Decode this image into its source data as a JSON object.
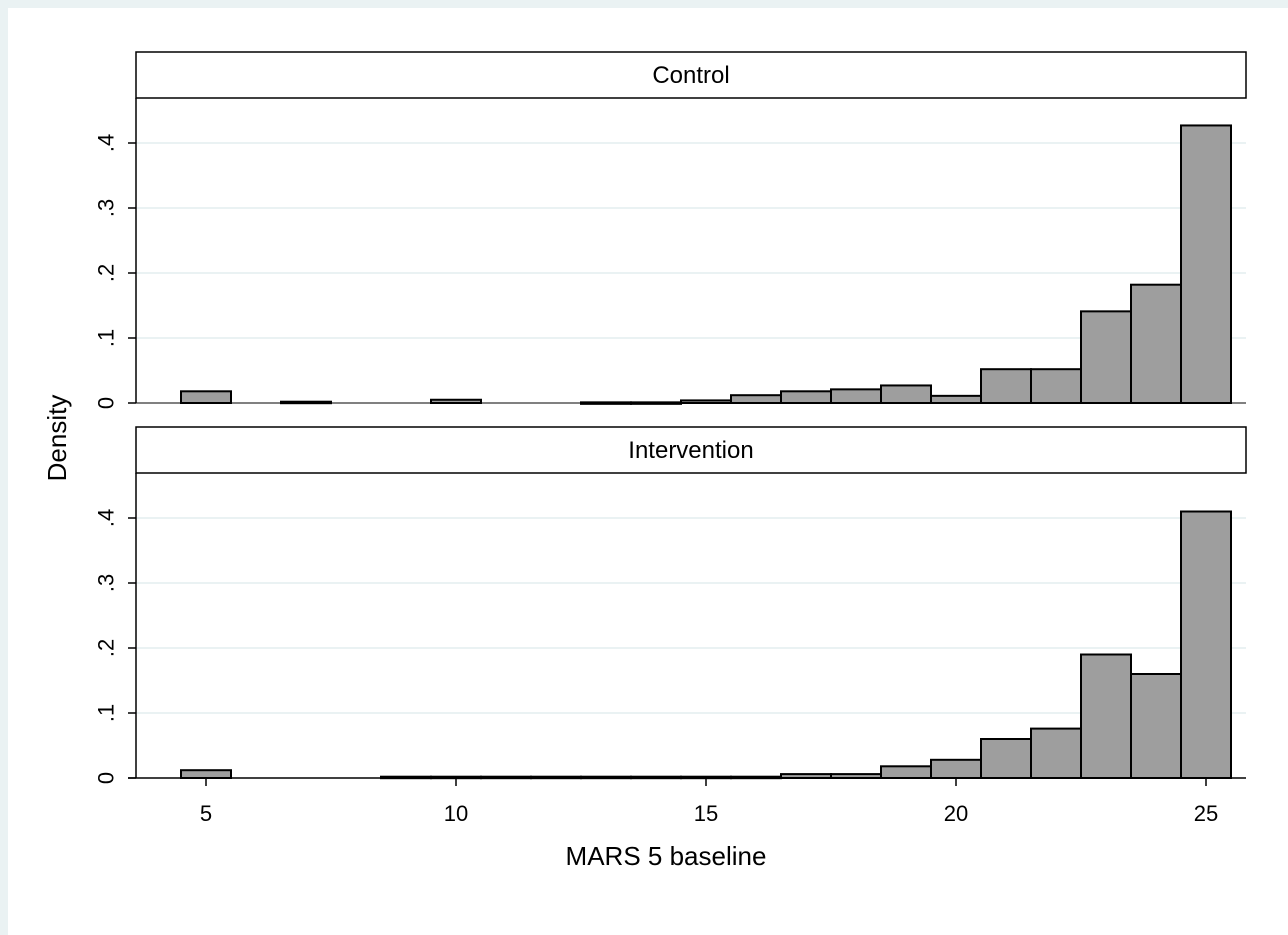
{
  "chart_data": {
    "type": "bar",
    "subtype": "histogram",
    "xlabel": "MARS 5 baseline",
    "ylabel": "Density",
    "xlim": [
      3.6,
      25.8
    ],
    "ylim": [
      0,
      0.46
    ],
    "x_ticks": [
      {
        "value": 5,
        "label": "5"
      },
      {
        "value": 10,
        "label": "10"
      },
      {
        "value": 15,
        "label": "15"
      },
      {
        "value": 20,
        "label": "20"
      },
      {
        "value": 25,
        "label": "25"
      }
    ],
    "y_ticks": [
      {
        "value": 0,
        "label": "0"
      },
      {
        "value": 0.1,
        "label": ".1"
      },
      {
        "value": 0.2,
        "label": ".2"
      },
      {
        "value": 0.3,
        "label": ".3"
      },
      {
        "value": 0.4,
        "label": ".4"
      }
    ],
    "grid": true,
    "bin_width": 1,
    "bar_color": "#9e9e9e",
    "edge_color": "#000000",
    "grid_color": "#eaf2f3",
    "panels": [
      {
        "label": "Control",
        "bars": [
          {
            "x": 5,
            "y": 0.018
          },
          {
            "x": 7,
            "y": 0.002
          },
          {
            "x": 10,
            "y": 0.005
          },
          {
            "x": 13,
            "y": 0.001
          },
          {
            "x": 14,
            "y": 0.001
          },
          {
            "x": 15,
            "y": 0.004
          },
          {
            "x": 16,
            "y": 0.012
          },
          {
            "x": 17,
            "y": 0.018
          },
          {
            "x": 18,
            "y": 0.021
          },
          {
            "x": 19,
            "y": 0.027
          },
          {
            "x": 20,
            "y": 0.011
          },
          {
            "x": 21,
            "y": 0.052
          },
          {
            "x": 22,
            "y": 0.052
          },
          {
            "x": 23,
            "y": 0.141
          },
          {
            "x": 24,
            "y": 0.182
          },
          {
            "x": 25,
            "y": 0.427
          }
        ]
      },
      {
        "label": "Intervention",
        "bars": [
          {
            "x": 5,
            "y": 0.012
          },
          {
            "x": 9,
            "y": 0.002
          },
          {
            "x": 10,
            "y": 0.002
          },
          {
            "x": 11,
            "y": 0.002
          },
          {
            "x": 12,
            "y": 0.002
          },
          {
            "x": 13,
            "y": 0.002
          },
          {
            "x": 14,
            "y": 0.002
          },
          {
            "x": 15,
            "y": 0.002
          },
          {
            "x": 16,
            "y": 0.002
          },
          {
            "x": 17,
            "y": 0.006
          },
          {
            "x": 18,
            "y": 0.006
          },
          {
            "x": 19,
            "y": 0.018
          },
          {
            "x": 20,
            "y": 0.028
          },
          {
            "x": 21,
            "y": 0.06
          },
          {
            "x": 22,
            "y": 0.076
          },
          {
            "x": 23,
            "y": 0.19
          },
          {
            "x": 24,
            "y": 0.16
          },
          {
            "x": 25,
            "y": 0.41
          }
        ]
      }
    ]
  }
}
